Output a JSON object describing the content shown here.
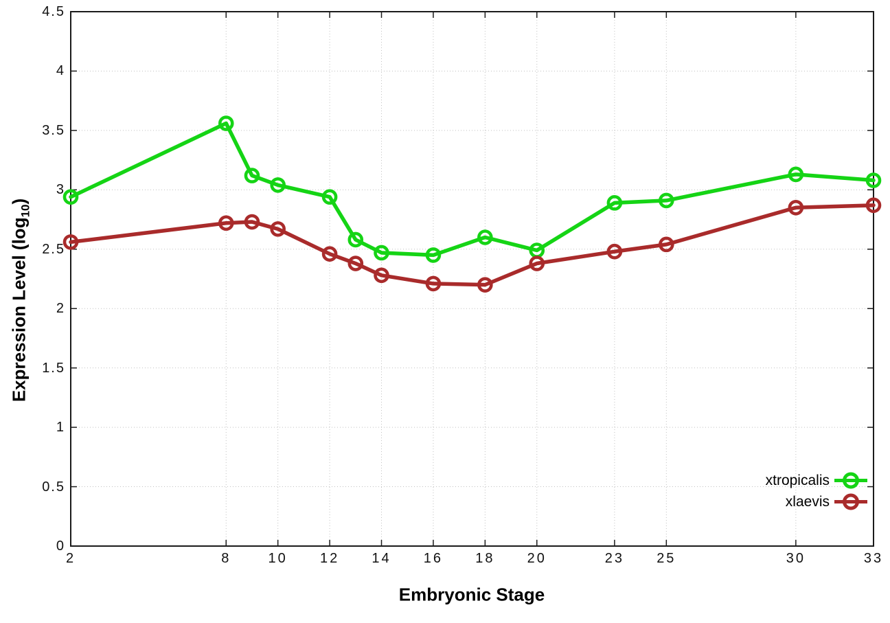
{
  "chart_data": {
    "type": "line",
    "title": "",
    "xlabel": "Embryonic Stage",
    "ylabel": "Expression Level (log10)",
    "ylabel_parts": {
      "prefix": "Expression Level (log",
      "sub": "10",
      "suffix": ")"
    },
    "x": [
      2,
      8,
      9,
      10,
      12,
      13,
      14,
      16,
      18,
      20,
      23,
      25,
      30,
      33
    ],
    "series": [
      {
        "name": "xtropicalis",
        "color": "#15d415",
        "values": [
          2.94,
          3.56,
          3.12,
          3.04,
          2.94,
          2.58,
          2.47,
          2.45,
          2.6,
          2.49,
          2.89,
          2.91,
          3.13,
          3.08
        ]
      },
      {
        "name": "xlaevis",
        "color": "#a92b2b",
        "values": [
          2.56,
          2.72,
          2.73,
          2.67,
          2.46,
          2.38,
          2.28,
          2.21,
          2.2,
          2.38,
          2.48,
          2.54,
          2.85,
          2.87
        ]
      }
    ],
    "xlim": [
      2,
      33
    ],
    "ylim": [
      0,
      4.5
    ],
    "x_ticks": [
      2,
      8,
      10,
      12,
      14,
      16,
      18,
      20,
      23,
      25,
      30,
      33
    ],
    "x_tick_labels": [
      "2",
      "8",
      "10",
      "12",
      "14",
      "16",
      "18",
      "20",
      "23",
      "25",
      "30",
      "33"
    ],
    "y_ticks": [
      0,
      0.5,
      1,
      1.5,
      2,
      2.5,
      3,
      3.5,
      4,
      4.5
    ],
    "y_tick_labels": [
      "0",
      "0.5",
      "1",
      "1.5",
      "2",
      "2.5",
      "3",
      "3.5",
      "4",
      "4.5"
    ],
    "grid": true,
    "legend_position": "bottom-right",
    "background_color": "#ffffff",
    "axis_color": "#1a1a1a",
    "grid_color": "#c0c0c0",
    "tick_label_color": "#111111"
  }
}
